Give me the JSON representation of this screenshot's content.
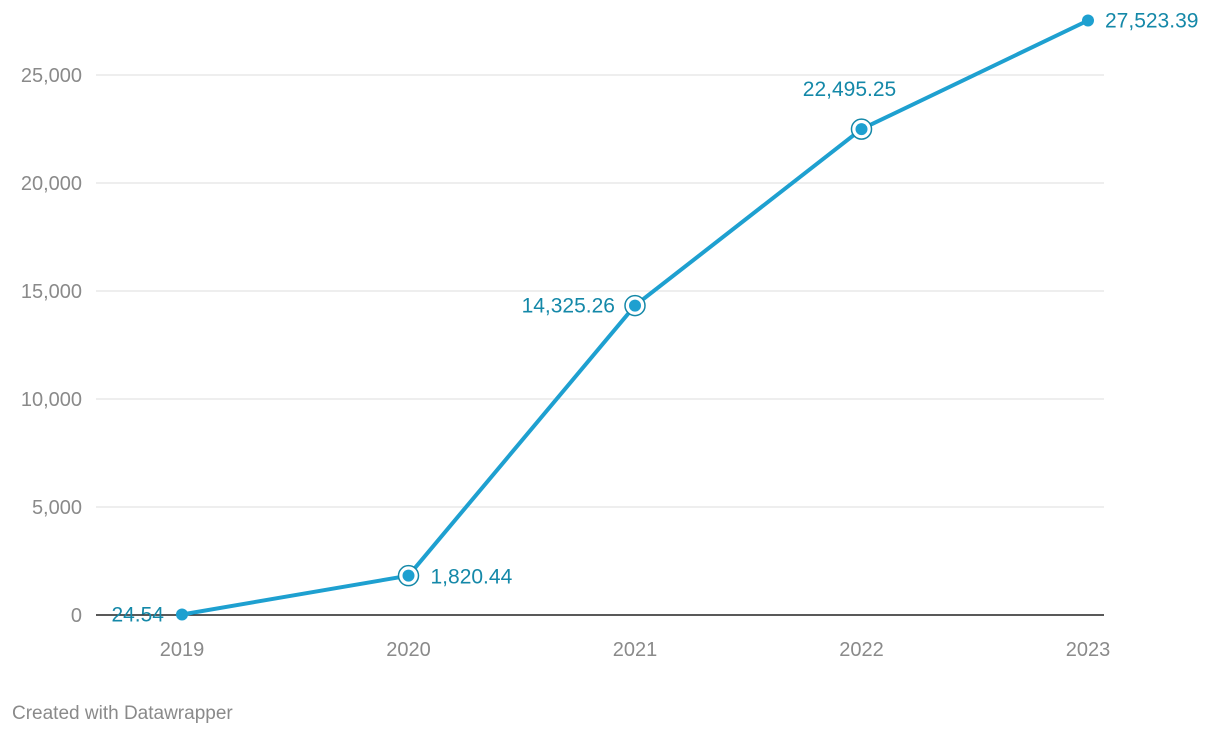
{
  "chart_data": {
    "type": "line",
    "categories": [
      "2019",
      "2020",
      "2021",
      "2022",
      "2023"
    ],
    "series": [
      {
        "values": [
          24.54,
          1820.44,
          14325.26,
          22495.25,
          27523.39
        ]
      }
    ],
    "data_labels": [
      "24.54",
      "1,820.44",
      "14,325.26",
      "22,495.25",
      "27,523.39"
    ],
    "y_ticks": [
      0,
      5000,
      10000,
      15000,
      20000,
      25000
    ],
    "y_tick_labels": [
      "0",
      "5,000",
      "10,000",
      "15,000",
      "20,000",
      "25,000"
    ],
    "ylim": [
      0,
      27523.39
    ],
    "grid": true,
    "line_color": "#1ea0d0",
    "label_color": "#1488a8",
    "highlighted_points": [
      "2020",
      "2021",
      "2022"
    ]
  },
  "credit": "Created with Datawrapper"
}
